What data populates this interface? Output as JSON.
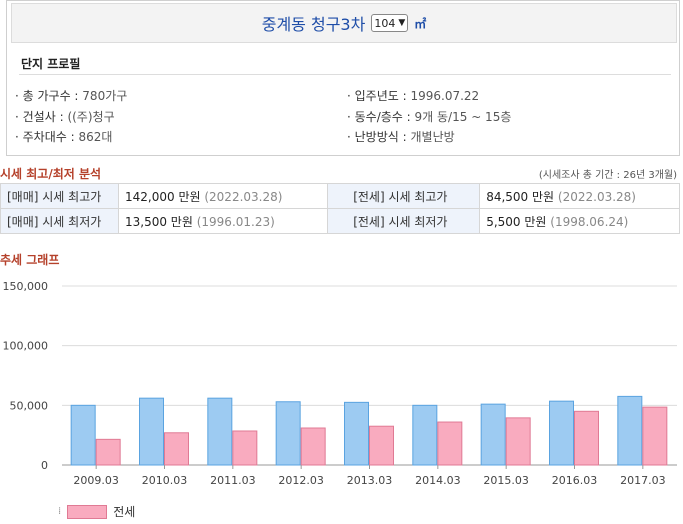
{
  "header": {
    "title": "중계동 청구3차",
    "size_value": "104",
    "unit": "㎡"
  },
  "profile": {
    "section_label": "단지 프로필",
    "items": [
      {
        "key": "· 총 가구수 :",
        "value": "780가구"
      },
      {
        "key": "· 입주년도 :",
        "value": "1996.07.22"
      },
      {
        "key": "· 건설사 :",
        "value": "((주)청구"
      },
      {
        "key": "· 동수/층수 :",
        "value": "9개 동/15 ~ 15층"
      },
      {
        "key": "· 주차대수 :",
        "value": "862대"
      },
      {
        "key": "· 난방방식 :",
        "value": "개별난방"
      }
    ]
  },
  "price_analysis": {
    "title": "시세 최고/최저 분석",
    "note": "(시세조사 총 기간 : 26년 3개월)",
    "rows": [
      {
        "h1": "[매매] 시세 최고가",
        "v1": "142,000 만원",
        "d1": "(2022.03.28)",
        "h2": "[전세] 시세 최고가",
        "v2": "84,500 만원",
        "d2": "(2022.03.28)"
      },
      {
        "h1": "[매매] 시세 최저가",
        "v1": "13,500 만원",
        "d1": "(1996.01.23)",
        "h2": "[전세] 시세 최저가",
        "v2": "5,500 만원",
        "d2": "(1998.06.24)"
      }
    ]
  },
  "chart": {
    "title": "추세 그래프",
    "legend_label": "전세",
    "legend_cut": "⁞"
  },
  "chart_data": {
    "type": "bar",
    "categories": [
      "2009.03",
      "2010.03",
      "2011.03",
      "2012.03",
      "2013.03",
      "2014.03",
      "2015.03",
      "2016.03",
      "2017.03"
    ],
    "series": [
      {
        "values": [
          50000,
          56000,
          56000,
          53000,
          52500,
          50000,
          51000,
          53500,
          57500
        ],
        "color": "#9dcbf2"
      },
      {
        "name": "전세",
        "values": [
          21500,
          27000,
          28500,
          31000,
          32500,
          36000,
          39500,
          45000,
          48500
        ],
        "color": "#f9abbf"
      }
    ],
    "yticks": [
      "150,000",
      "100,000",
      "50,000",
      "0"
    ],
    "ylim": [
      0,
      150000
    ],
    "grid": true,
    "legend_position": "bottom-left"
  }
}
